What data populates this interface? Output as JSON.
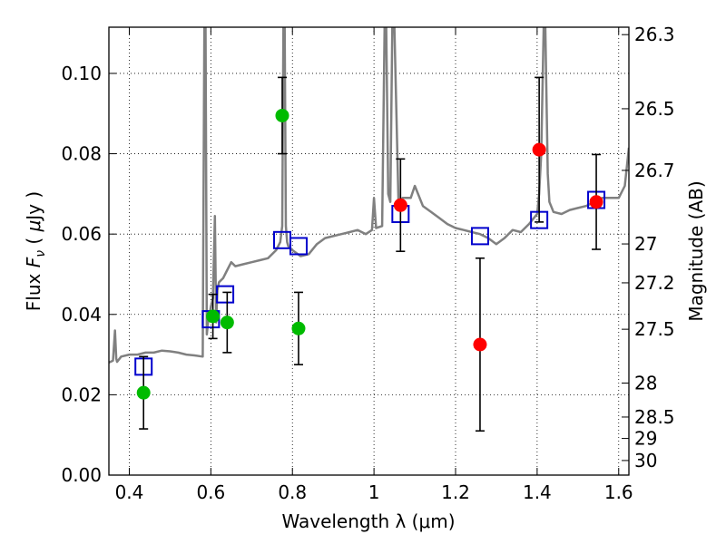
{
  "chart_data": {
    "type": "scatter",
    "xlabel": "Wavelength  λ (μm)",
    "ylabel": "Flux  F_ν  ( μJy )",
    "ylabel_parts": {
      "pre": "Flux  ",
      "sym": "F",
      "sub": "ν",
      "post": "  ( ",
      "mu": "μ",
      "unit": "Jy )"
    },
    "y2label": "Magnitude (AB)",
    "xlim": [
      0.35,
      1.625
    ],
    "ylim": [
      0.0,
      0.1115
    ],
    "grid": true,
    "x_ticks": [
      0.4,
      0.6,
      0.8,
      1.0,
      1.2,
      1.4,
      1.6
    ],
    "x_tick_labels": [
      "0.4",
      "0.6",
      "0.8",
      "1",
      "1.2",
      "1.4",
      "1.6"
    ],
    "y_ticks": [
      0.0,
      0.02,
      0.04,
      0.06,
      0.08,
      0.1
    ],
    "y_tick_labels": [
      "0.00",
      "0.02",
      "0.04",
      "0.06",
      "0.08",
      "0.10"
    ],
    "magnitude_ticks": [
      26.3,
      26.5,
      26.7,
      27,
      27.2,
      27.5,
      28,
      28.5,
      29,
      30
    ],
    "magnitude_tick_labels": [
      "26.3",
      "26.5",
      "26.7",
      "27",
      "27.2",
      "27.5",
      "28",
      "28.5",
      "29",
      "30"
    ],
    "series": [
      {
        "name": "green observed points",
        "color": "#00bb00",
        "points": [
          {
            "x": 0.435,
            "y": 0.0205,
            "err": 0.009
          },
          {
            "x": 0.605,
            "y": 0.0395,
            "err": 0.0055
          },
          {
            "x": 0.64,
            "y": 0.038,
            "err": 0.0075
          },
          {
            "x": 0.775,
            "y": 0.0895,
            "err": 0.0095
          },
          {
            "x": 0.815,
            "y": 0.0365,
            "err": 0.009
          }
        ]
      },
      {
        "name": "red observed points",
        "color": "#ff0000",
        "points": [
          {
            "x": 1.065,
            "y": 0.0672,
            "err": 0.0115
          },
          {
            "x": 1.26,
            "y": 0.0325,
            "err": 0.0215
          },
          {
            "x": 1.405,
            "y": 0.081,
            "err": 0.018
          },
          {
            "x": 1.545,
            "y": 0.068,
            "err": 0.0118
          }
        ]
      },
      {
        "name": "model band fluxes",
        "marker": "open-square",
        "color": "#0000cc",
        "points": [
          {
            "x": 0.435,
            "y": 0.027
          },
          {
            "x": 0.6,
            "y": 0.0388
          },
          {
            "x": 0.635,
            "y": 0.045
          },
          {
            "x": 0.775,
            "y": 0.0585
          },
          {
            "x": 0.815,
            "y": 0.057
          },
          {
            "x": 1.065,
            "y": 0.065
          },
          {
            "x": 1.26,
            "y": 0.0595
          },
          {
            "x": 1.405,
            "y": 0.0635
          },
          {
            "x": 1.545,
            "y": 0.0685
          }
        ]
      }
    ],
    "model_spectrum": {
      "name": "model spectrum",
      "color": "#808080",
      "x": [
        0.35,
        0.36,
        0.365,
        0.368,
        0.37,
        0.38,
        0.4,
        0.42,
        0.44,
        0.46,
        0.48,
        0.5,
        0.52,
        0.54,
        0.56,
        0.58,
        0.584,
        0.587,
        0.59,
        0.593,
        0.597,
        0.6,
        0.605,
        0.61,
        0.613,
        0.616,
        0.62,
        0.63,
        0.64,
        0.65,
        0.66,
        0.68,
        0.7,
        0.72,
        0.74,
        0.76,
        0.77,
        0.775,
        0.778,
        0.781,
        0.784,
        0.787,
        0.79,
        0.8,
        0.82,
        0.84,
        0.86,
        0.88,
        0.9,
        0.92,
        0.94,
        0.96,
        0.98,
        0.995,
        1.0,
        1.005,
        1.02,
        1.026,
        1.03,
        1.035,
        1.04,
        1.045,
        1.05,
        1.06,
        1.07,
        1.09,
        1.1,
        1.12,
        1.14,
        1.16,
        1.18,
        1.2,
        1.22,
        1.24,
        1.26,
        1.28,
        1.3,
        1.32,
        1.34,
        1.36,
        1.38,
        1.4,
        1.405,
        1.41,
        1.416,
        1.42,
        1.426,
        1.43,
        1.44,
        1.46,
        1.48,
        1.5,
        1.52,
        1.54,
        1.56,
        1.58,
        1.6,
        1.615,
        1.625
      ],
      "y": [
        0.028,
        0.0285,
        0.036,
        0.029,
        0.0282,
        0.0295,
        0.03,
        0.03,
        0.0305,
        0.0305,
        0.031,
        0.0308,
        0.0305,
        0.03,
        0.0298,
        0.0295,
        0.1115,
        0.1115,
        0.035,
        0.038,
        0.04,
        0.042,
        0.044,
        0.0645,
        0.038,
        0.046,
        0.048,
        0.049,
        0.051,
        0.053,
        0.052,
        0.0525,
        0.053,
        0.0535,
        0.054,
        0.056,
        0.058,
        0.062,
        0.1115,
        0.1115,
        0.062,
        0.058,
        0.057,
        0.056,
        0.0545,
        0.055,
        0.0575,
        0.059,
        0.0595,
        0.06,
        0.0605,
        0.061,
        0.06,
        0.061,
        0.069,
        0.0615,
        0.062,
        0.1115,
        0.1115,
        0.07,
        0.068,
        0.1115,
        0.1115,
        0.068,
        0.069,
        0.069,
        0.072,
        0.067,
        0.0655,
        0.064,
        0.0625,
        0.0615,
        0.061,
        0.0605,
        0.06,
        0.059,
        0.0575,
        0.059,
        0.061,
        0.0605,
        0.0625,
        0.065,
        0.07,
        0.08,
        0.1115,
        0.1115,
        0.075,
        0.068,
        0.0655,
        0.065,
        0.066,
        0.0665,
        0.067,
        0.068,
        0.069,
        0.069,
        0.069,
        0.072,
        0.0815
      ]
    }
  }
}
